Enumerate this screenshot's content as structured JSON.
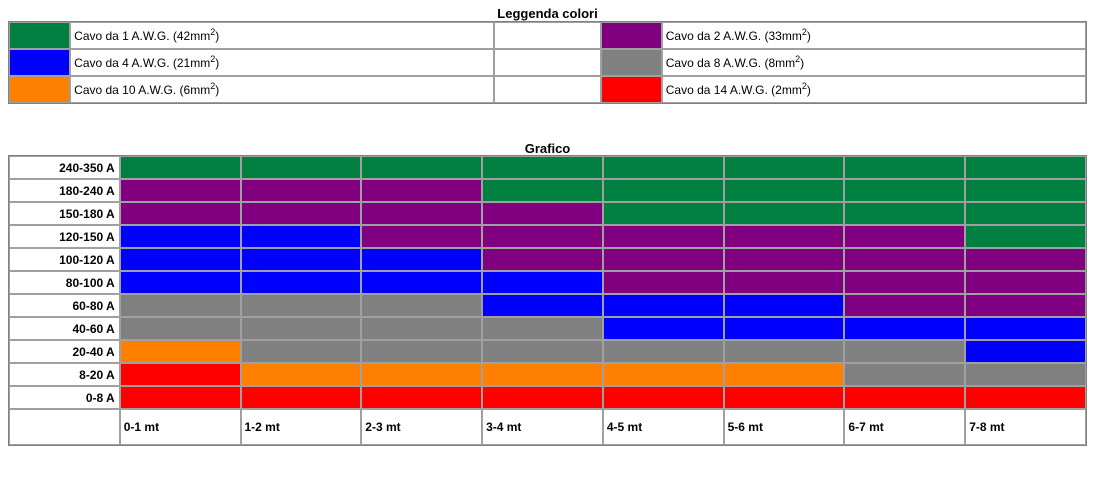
{
  "legend": {
    "title": "Leggenda colori",
    "items": [
      {
        "label": "Cavo da 1 A.W.G. (42mm",
        "sup": "2",
        "suffix": ")",
        "color": "#008040"
      },
      {
        "label": "Cavo da 2 A.W.G. (33mm",
        "sup": "2",
        "suffix": ")",
        "color": "#800080"
      },
      {
        "label": "Cavo da 4 A.W.G. (21mm",
        "sup": "2",
        "suffix": ")",
        "color": "#0000ff"
      },
      {
        "label": "Cavo da 8 A.W.G. (8mm",
        "sup": "2",
        "suffix": ")",
        "color": "#808080"
      },
      {
        "label": "Cavo da 10 A.W.G. (6mm",
        "sup": "2",
        "suffix": ")",
        "color": "#ff8000"
      },
      {
        "label": "Cavo da 14 A.W.G. (2mm",
        "sup": "2",
        "suffix": ")",
        "color": "#ff0000"
      }
    ]
  },
  "chart": {
    "title": "Grafico",
    "rows": [
      "240-350 A",
      "180-240 A",
      "150-180 A",
      "120-150 A",
      "100-120 A",
      "80-100 A",
      "60-80 A",
      "40-60 A",
      "20-40 A",
      "8-20 A",
      "0-8 A"
    ],
    "columns": [
      "0-1 mt",
      "1-2 mt",
      "2-3 mt",
      "3-4 mt",
      "4-5 mt",
      "5-6 mt",
      "6-7 mt",
      "7-8 mt"
    ]
  },
  "chart_data": {
    "type": "table",
    "title": "Grafico",
    "rows": [
      "240-350 A",
      "180-240 A",
      "150-180 A",
      "120-150 A",
      "100-120 A",
      "80-100 A",
      "60-80 A",
      "40-60 A",
      "20-40 A",
      "8-20 A",
      "0-8 A"
    ],
    "columns": [
      "0-1 mt",
      "1-2 mt",
      "2-3 mt",
      "3-4 mt",
      "4-5 mt",
      "5-6 mt",
      "6-7 mt",
      "7-8 mt"
    ],
    "cells": [
      [
        "1 A.W.G.",
        "1 A.W.G.",
        "1 A.W.G.",
        "1 A.W.G.",
        "1 A.W.G.",
        "1 A.W.G.",
        "1 A.W.G.",
        "1 A.W.G."
      ],
      [
        "2 A.W.G.",
        "2 A.W.G.",
        "2 A.W.G.",
        "1 A.W.G.",
        "1 A.W.G.",
        "1 A.W.G.",
        "1 A.W.G.",
        "1 A.W.G."
      ],
      [
        "2 A.W.G.",
        "2 A.W.G.",
        "2 A.W.G.",
        "2 A.W.G.",
        "1 A.W.G.",
        "1 A.W.G.",
        "1 A.W.G.",
        "1 A.W.G."
      ],
      [
        "4 A.W.G.",
        "4 A.W.G.",
        "2 A.W.G.",
        "2 A.W.G.",
        "2 A.W.G.",
        "2 A.W.G.",
        "2 A.W.G.",
        "1 A.W.G."
      ],
      [
        "4 A.W.G.",
        "4 A.W.G.",
        "4 A.W.G.",
        "2 A.W.G.",
        "2 A.W.G.",
        "2 A.W.G.",
        "2 A.W.G.",
        "2 A.W.G."
      ],
      [
        "4 A.W.G.",
        "4 A.W.G.",
        "4 A.W.G.",
        "4 A.W.G.",
        "2 A.W.G.",
        "2 A.W.G.",
        "2 A.W.G.",
        "2 A.W.G."
      ],
      [
        "8 A.W.G.",
        "8 A.W.G.",
        "8 A.W.G.",
        "4 A.W.G.",
        "4 A.W.G.",
        "4 A.W.G.",
        "2 A.W.G.",
        "2 A.W.G."
      ],
      [
        "8 A.W.G.",
        "8 A.W.G.",
        "8 A.W.G.",
        "8 A.W.G.",
        "4 A.W.G.",
        "4 A.W.G.",
        "4 A.W.G.",
        "4 A.W.G."
      ],
      [
        "10 A.W.G.",
        "8 A.W.G.",
        "8 A.W.G.",
        "8 A.W.G.",
        "8 A.W.G.",
        "8 A.W.G.",
        "8 A.W.G.",
        "4 A.W.G."
      ],
      [
        "14 A.W.G.",
        "10 A.W.G.",
        "10 A.W.G.",
        "10 A.W.G.",
        "10 A.W.G.",
        "10 A.W.G.",
        "8 A.W.G.",
        "8 A.W.G."
      ],
      [
        "14 A.W.G.",
        "14 A.W.G.",
        "14 A.W.G.",
        "14 A.W.G.",
        "14 A.W.G.",
        "14 A.W.G.",
        "14 A.W.G.",
        "14 A.W.G."
      ]
    ],
    "colors": {
      "1 A.W.G.": "#008040",
      "2 A.W.G.": "#800080",
      "4 A.W.G.": "#0000ff",
      "8 A.W.G.": "#808080",
      "10 A.W.G.": "#ff8000",
      "14 A.W.G.": "#ff0000"
    }
  }
}
